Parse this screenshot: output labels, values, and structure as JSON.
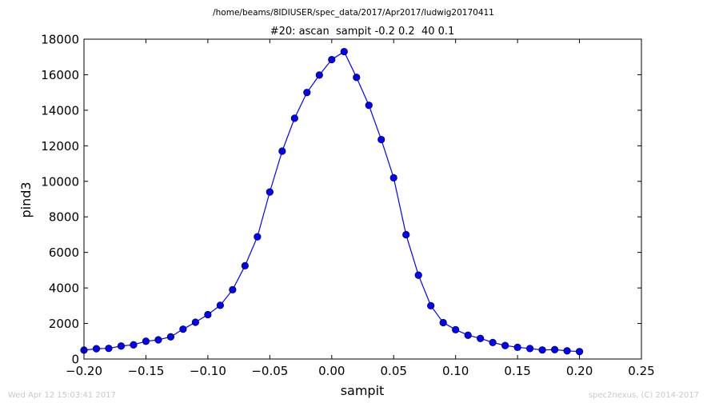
{
  "footer": {
    "timestamp": "Wed Apr 12 15:03:41 2017",
    "credit": "spec2nexus, (C) 2014-2017"
  },
  "chart_data": {
    "type": "line",
    "title": "/home/beams/8IDIUSER/spec_data/2017/Apr2017/ludwig20170411",
    "subtitle": "#20: ascan  sampit -0.2 0.2  40 0.1",
    "xlabel": "sampit",
    "ylabel": "pind3",
    "xlim": [
      -0.2,
      0.25
    ],
    "ylim": [
      0,
      18000
    ],
    "xticks": [
      -0.2,
      -0.15,
      -0.1,
      -0.05,
      0.0,
      0.05,
      0.1,
      0.15,
      0.2,
      0.25
    ],
    "xtick_labels": [
      "−0.20",
      "−0.15",
      "−0.10",
      "−0.05",
      "0.00",
      "0.05",
      "0.10",
      "0.15",
      "0.20",
      "0.25"
    ],
    "yticks": [
      0,
      2000,
      4000,
      6000,
      8000,
      10000,
      12000,
      14000,
      16000,
      18000
    ],
    "ytick_labels": [
      "0",
      "2000",
      "4000",
      "6000",
      "8000",
      "10000",
      "12000",
      "14000",
      "16000",
      "18000"
    ],
    "grid": false,
    "color": "#0000ff",
    "series": [
      {
        "x": [
          -0.2,
          -0.19,
          -0.18,
          -0.17,
          -0.16,
          -0.15,
          -0.14,
          -0.13,
          -0.12,
          -0.11,
          -0.1,
          -0.09,
          -0.08,
          -0.07,
          -0.06,
          -0.05,
          -0.04,
          -0.03,
          -0.02,
          -0.01,
          0.0,
          0.01,
          0.02,
          0.03,
          0.04,
          0.05,
          0.06,
          0.07,
          0.08,
          0.09,
          0.1,
          0.11,
          0.12,
          0.13,
          0.14,
          0.15,
          0.16,
          0.17,
          0.18,
          0.19,
          0.2
        ],
        "y": [
          500,
          580,
          600,
          730,
          800,
          1000,
          1080,
          1250,
          1680,
          2070,
          2500,
          3020,
          3900,
          5250,
          6880,
          9400,
          11700,
          13550,
          15000,
          15980,
          16850,
          17300,
          15850,
          14280,
          12350,
          10200,
          7000,
          4720,
          3000,
          2050,
          1650,
          1340,
          1160,
          930,
          760,
          660,
          590,
          510,
          530,
          460,
          420
        ]
      }
    ]
  }
}
